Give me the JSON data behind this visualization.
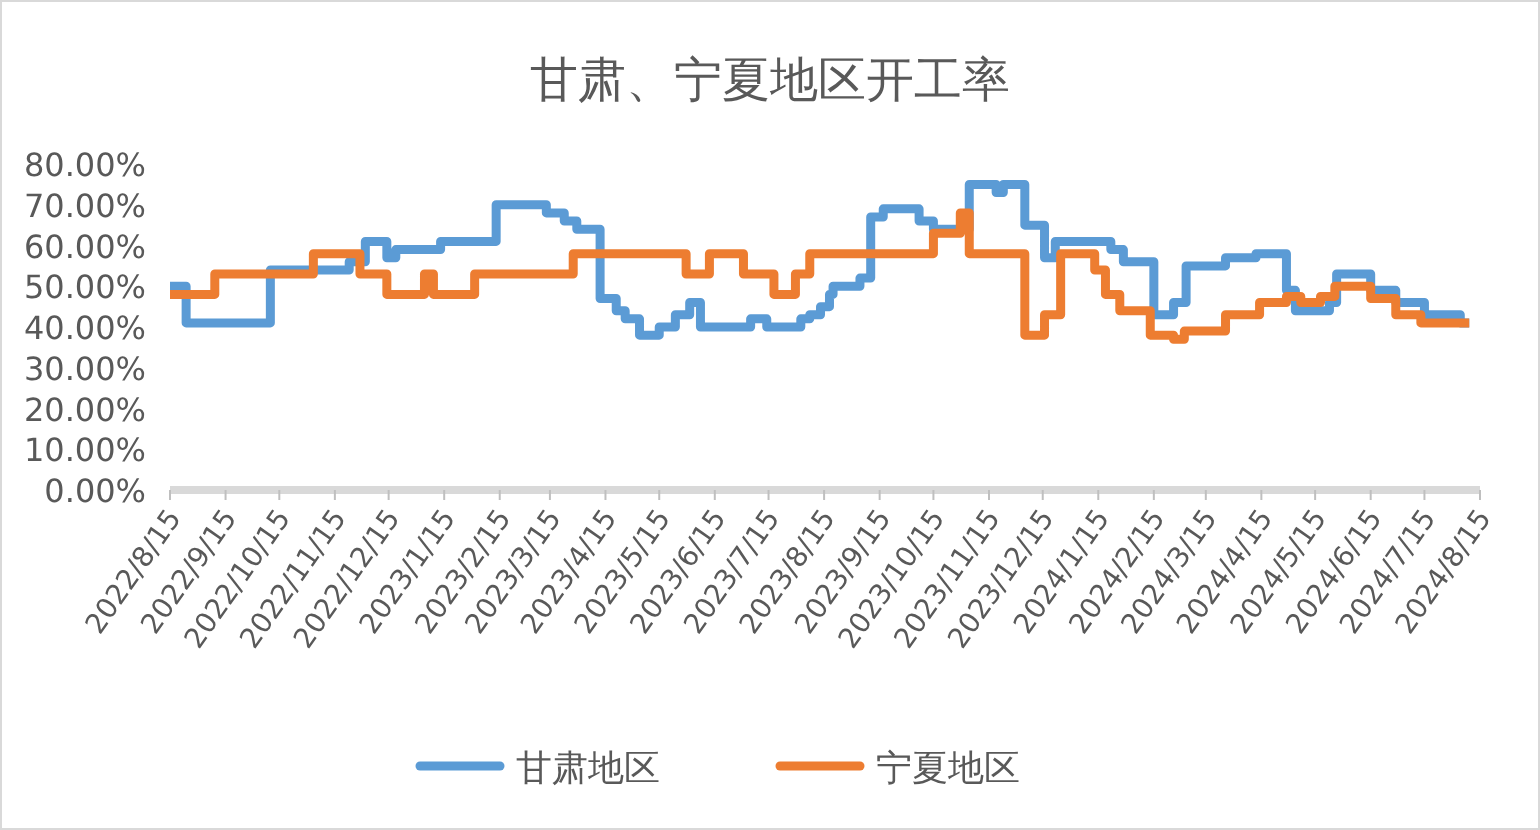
{
  "chart_data": {
    "type": "step",
    "title": "甘肃、宁夏地区开工率",
    "legend": "bottom",
    "xlim": [
      "2022-08-15",
      "2024-08-15"
    ],
    "xticks": [
      {
        "value": "2022-08-15",
        "label": "2022/8/15"
      },
      {
        "value": "2022-09-15",
        "label": "2022/9/15"
      },
      {
        "value": "2022-10-15",
        "label": "2022/10/15"
      },
      {
        "value": "2022-11-15",
        "label": "2022/11/15"
      },
      {
        "value": "2022-12-15",
        "label": "2022/12/15"
      },
      {
        "value": "2023-01-15",
        "label": "2023/1/15"
      },
      {
        "value": "2023-02-15",
        "label": "2023/2/15"
      },
      {
        "value": "2023-03-15",
        "label": "2023/3/15"
      },
      {
        "value": "2023-04-15",
        "label": "2023/4/15"
      },
      {
        "value": "2023-05-15",
        "label": "2023/5/15"
      },
      {
        "value": "2023-06-15",
        "label": "2023/6/15"
      },
      {
        "value": "2023-07-15",
        "label": "2023/7/15"
      },
      {
        "value": "2023-08-15",
        "label": "2023/8/15"
      },
      {
        "value": "2023-09-15",
        "label": "2023/9/15"
      },
      {
        "value": "2023-10-15",
        "label": "2023/10/15"
      },
      {
        "value": "2023-11-15",
        "label": "2023/11/15"
      },
      {
        "value": "2023-12-15",
        "label": "2023/12/15"
      },
      {
        "value": "2024-01-15",
        "label": "2024/1/15"
      },
      {
        "value": "2024-02-15",
        "label": "2024/2/15"
      },
      {
        "value": "2024-03-15",
        "label": "2024/3/15"
      },
      {
        "value": "2024-04-15",
        "label": "2024/4/15"
      },
      {
        "value": "2024-05-15",
        "label": "2024/5/15"
      },
      {
        "value": "2024-06-15",
        "label": "2024/6/15"
      },
      {
        "value": "2024-07-15",
        "label": "2024/7/15"
      },
      {
        "value": "2024-08-15",
        "label": "2024/8/15"
      }
    ],
    "ylim": [
      0,
      80
    ],
    "yticks": [
      {
        "value": 0,
        "label": "0.00%"
      },
      {
        "value": 10,
        "label": "10.00%"
      },
      {
        "value": 20,
        "label": "20.00%"
      },
      {
        "value": 30,
        "label": "30.00%"
      },
      {
        "value": 40,
        "label": "40.00%"
      },
      {
        "value": 50,
        "label": "50.00%"
      },
      {
        "value": 60,
        "label": "60.00%"
      },
      {
        "value": 70,
        "label": "70.00%"
      },
      {
        "value": 80,
        "label": "80.00%"
      }
    ],
    "series": [
      {
        "name": "甘肃地区",
        "color": "#5b9bd5",
        "x": [
          "2022-08-15",
          "2022-08-24",
          "2022-10-10",
          "2022-11-23",
          "2022-12-02",
          "2022-12-14",
          "2022-12-19",
          "2023-01-13",
          "2023-02-13",
          "2023-03-13",
          "2023-03-23",
          "2023-03-30",
          "2023-04-12",
          "2023-04-21",
          "2023-04-26",
          "2023-05-04",
          "2023-05-15",
          "2023-05-24",
          "2023-06-01",
          "2023-06-07",
          "2023-07-05",
          "2023-07-14",
          "2023-08-02",
          "2023-08-07",
          "2023-08-13",
          "2023-08-18",
          "2023-08-20",
          "2023-09-04",
          "2023-09-10",
          "2023-09-17",
          "2023-10-07",
          "2023-10-15",
          "2023-11-04",
          "2023-11-19",
          "2023-11-23",
          "2023-12-05",
          "2023-12-16",
          "2023-12-22",
          "2024-01-22",
          "2024-01-29",
          "2024-02-15",
          "2024-02-26",
          "2024-03-04",
          "2024-03-26",
          "2024-04-12",
          "2024-04-29",
          "2024-05-04",
          "2024-05-23",
          "2024-05-27",
          "2024-06-15",
          "2024-06-29",
          "2024-07-15",
          "2024-08-04",
          "2024-08-09"
        ],
        "values": [
          50,
          41,
          54,
          56,
          61,
          57,
          59,
          61,
          70,
          68,
          66,
          64,
          47,
          44,
          42,
          38,
          40,
          43,
          46,
          40,
          42,
          40,
          42,
          43,
          45,
          48,
          50,
          52,
          67,
          69,
          66,
          64,
          75,
          73,
          75,
          65,
          57,
          61,
          59,
          56,
          43,
          46,
          55,
          57,
          58,
          49,
          44,
          46,
          53,
          49,
          46,
          43,
          41,
          41
        ]
      },
      {
        "name": "宁夏地区",
        "color": "#ed7d31",
        "x": [
          "2022-08-15",
          "2022-09-09",
          "2022-11-03",
          "2022-11-29",
          "2022-12-14",
          "2023-01-04",
          "2023-01-09",
          "2023-02-01",
          "2023-03-28",
          "2023-05-30",
          "2023-06-12",
          "2023-07-01",
          "2023-07-18",
          "2023-07-30",
          "2023-08-07",
          "2023-10-15",
          "2023-10-30",
          "2023-11-04",
          "2023-12-05",
          "2023-12-16",
          "2023-12-25",
          "2024-01-13",
          "2024-01-19",
          "2024-01-27",
          "2024-02-13",
          "2024-02-26",
          "2024-03-03",
          "2024-03-26",
          "2024-04-14",
          "2024-04-29",
          "2024-05-07",
          "2024-05-18",
          "2024-05-26",
          "2024-06-15",
          "2024-06-29",
          "2024-07-13",
          "2024-08-09"
        ],
        "values": [
          48,
          53,
          58,
          53,
          48,
          53,
          48,
          53,
          58,
          53,
          58,
          53,
          48,
          53,
          58,
          63,
          68,
          58,
          38,
          43,
          58,
          54,
          48,
          44,
          38,
          37,
          39,
          43,
          46,
          47.5,
          46,
          47.5,
          50,
          47,
          43,
          41,
          41
        ]
      }
    ]
  }
}
